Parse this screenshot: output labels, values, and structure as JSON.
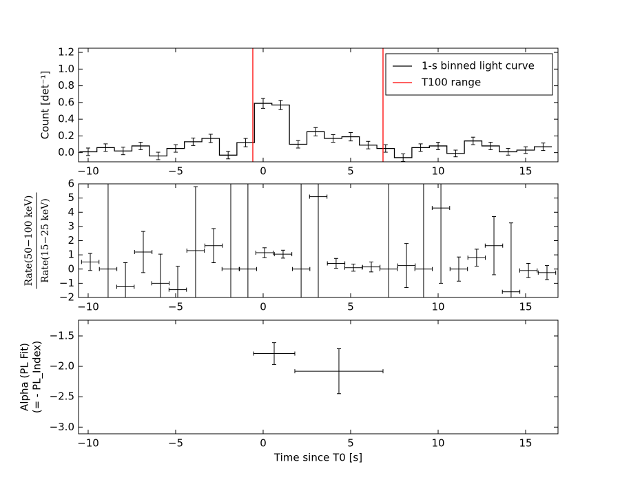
{
  "chart_data": [
    {
      "type": "step",
      "ylabel": "Count [det⁻¹]",
      "legend": "upper right",
      "xlim": [
        -10.55,
        16.85
      ],
      "ylim": [
        -0.11,
        1.25
      ],
      "xticks": [
        {
          "value": -10,
          "label": "−10"
        },
        {
          "value": -5,
          "label": "−5"
        },
        0,
        5,
        10,
        15
      ],
      "yticks": [
        {
          "value": 0,
          "label": "0.0"
        },
        0.2,
        0.4,
        0.6,
        0.8,
        {
          "value": 1,
          "label": "1.0"
        },
        1.2
      ],
      "series": [
        {
          "name": "1-s binned light curve",
          "color": "#000000",
          "x": [
            -10,
            -9,
            -8,
            -7,
            -6,
            -5,
            -4,
            -3,
            -2,
            -1,
            0,
            1,
            2,
            3,
            4,
            5,
            6,
            7,
            8,
            9,
            10,
            11,
            12,
            13,
            14,
            15,
            16
          ],
          "values": [
            0.01,
            0.06,
            0.02,
            0.08,
            -0.04,
            0.05,
            0.13,
            0.17,
            -0.03,
            0.12,
            0.59,
            0.57,
            0.1,
            0.25,
            0.17,
            0.19,
            0.09,
            0.05,
            -0.06,
            0.06,
            0.08,
            -0.01,
            0.14,
            0.08,
            0.01,
            0.03,
            0.07
          ],
          "yerr": [
            0.045,
            0.045,
            0.045,
            0.045,
            0.045,
            0.045,
            0.045,
            0.05,
            0.045,
            0.05,
            0.06,
            0.055,
            0.045,
            0.05,
            0.045,
            0.05,
            0.045,
            0.045,
            0.045,
            0.045,
            0.045,
            0.04,
            0.045,
            0.045,
            0.04,
            0.04,
            0.045
          ]
        }
      ],
      "vlines": {
        "name": "T100 range",
        "color": "#ff0000",
        "x": [
          -0.59,
          6.85
        ]
      }
    },
    {
      "type": "errorbar",
      "ylabel": {
        "numerator": "Rate(50−100 keV)",
        "denominator": "Rate(15−25 keV)"
      },
      "xlim": [
        -10.55,
        16.85
      ],
      "ylim": [
        -2,
        6
      ],
      "xticks": [
        {
          "value": -10,
          "label": "−10"
        },
        {
          "value": -5,
          "label": "−5"
        },
        0,
        5,
        10,
        15
      ],
      "yticks": [
        {
          "value": -2,
          "label": "−2"
        },
        {
          "value": -1,
          "label": "−1"
        },
        0,
        1,
        2,
        3,
        4,
        5,
        6
      ],
      "series": [
        {
          "color": "#000000",
          "x": [
            -9.88,
            -8.86,
            -7.87,
            -6.85,
            -5.87,
            -4.88,
            -3.86,
            -2.83,
            -1.85,
            -0.87,
            0.08,
            1.14,
            2.17,
            3.15,
            4.17,
            5.16,
            6.18,
            7.17,
            8.19,
            9.17,
            10.16,
            11.18,
            12.2,
            13.19,
            14.17,
            15.16,
            16.22
          ],
          "values": [
            0.5,
            0,
            -1.25,
            1.2,
            -1.0,
            -1.45,
            1.3,
            1.65,
            0,
            0,
            1.15,
            1.05,
            0,
            5.1,
            0.4,
            0.1,
            0.15,
            0,
            0.25,
            0,
            4.3,
            0.0,
            0.8,
            1.65,
            -1.6,
            -0.1,
            -0.25
          ],
          "yerr": [
            0.6,
            10,
            1.7,
            1.45,
            2.05,
            1.65,
            4.5,
            1.2,
            10,
            10,
            0.35,
            0.28,
            10,
            10,
            0.35,
            0.25,
            0.35,
            10,
            1.55,
            10,
            5.3,
            0.85,
            0.6,
            2.05,
            4.85,
            0.5,
            0.5
          ],
          "xerr": [
            0.5,
            0.5,
            0.5,
            0.5,
            0.5,
            0.5,
            0.5,
            0.5,
            0.5,
            0.5,
            0.5,
            0.5,
            0.5,
            0.5,
            0.5,
            0.5,
            0.5,
            0.5,
            0.5,
            0.5,
            0.5,
            0.5,
            0.5,
            0.5,
            0.5,
            0.5,
            0.5
          ]
        }
      ]
    },
    {
      "type": "errorbar",
      "ylabel": [
        "Alpha (PL Fit)",
        "(= - PL_Index)"
      ],
      "xlabel": "Time since T0 [s]",
      "xlim": [
        -10.55,
        16.85
      ],
      "ylim": [
        -3.11,
        -1.24
      ],
      "xticks": [
        {
          "value": -10,
          "label": "−10"
        },
        {
          "value": -5,
          "label": "−5"
        },
        0,
        5,
        10,
        15
      ],
      "yticks": [
        {
          "value": -3,
          "label": "−3.0"
        },
        {
          "value": -2.5,
          "label": "−2.5"
        },
        {
          "value": -2,
          "label": "−2.0"
        },
        {
          "value": -1.5,
          "label": "−1.5"
        }
      ],
      "series": [
        {
          "color": "#000000",
          "x": [
            0.63,
            4.33
          ],
          "values": [
            -1.79,
            -2.08
          ],
          "yerr": [
            0.18,
            0.37
          ],
          "xerr": [
            1.18,
            2.52
          ]
        }
      ]
    }
  ]
}
